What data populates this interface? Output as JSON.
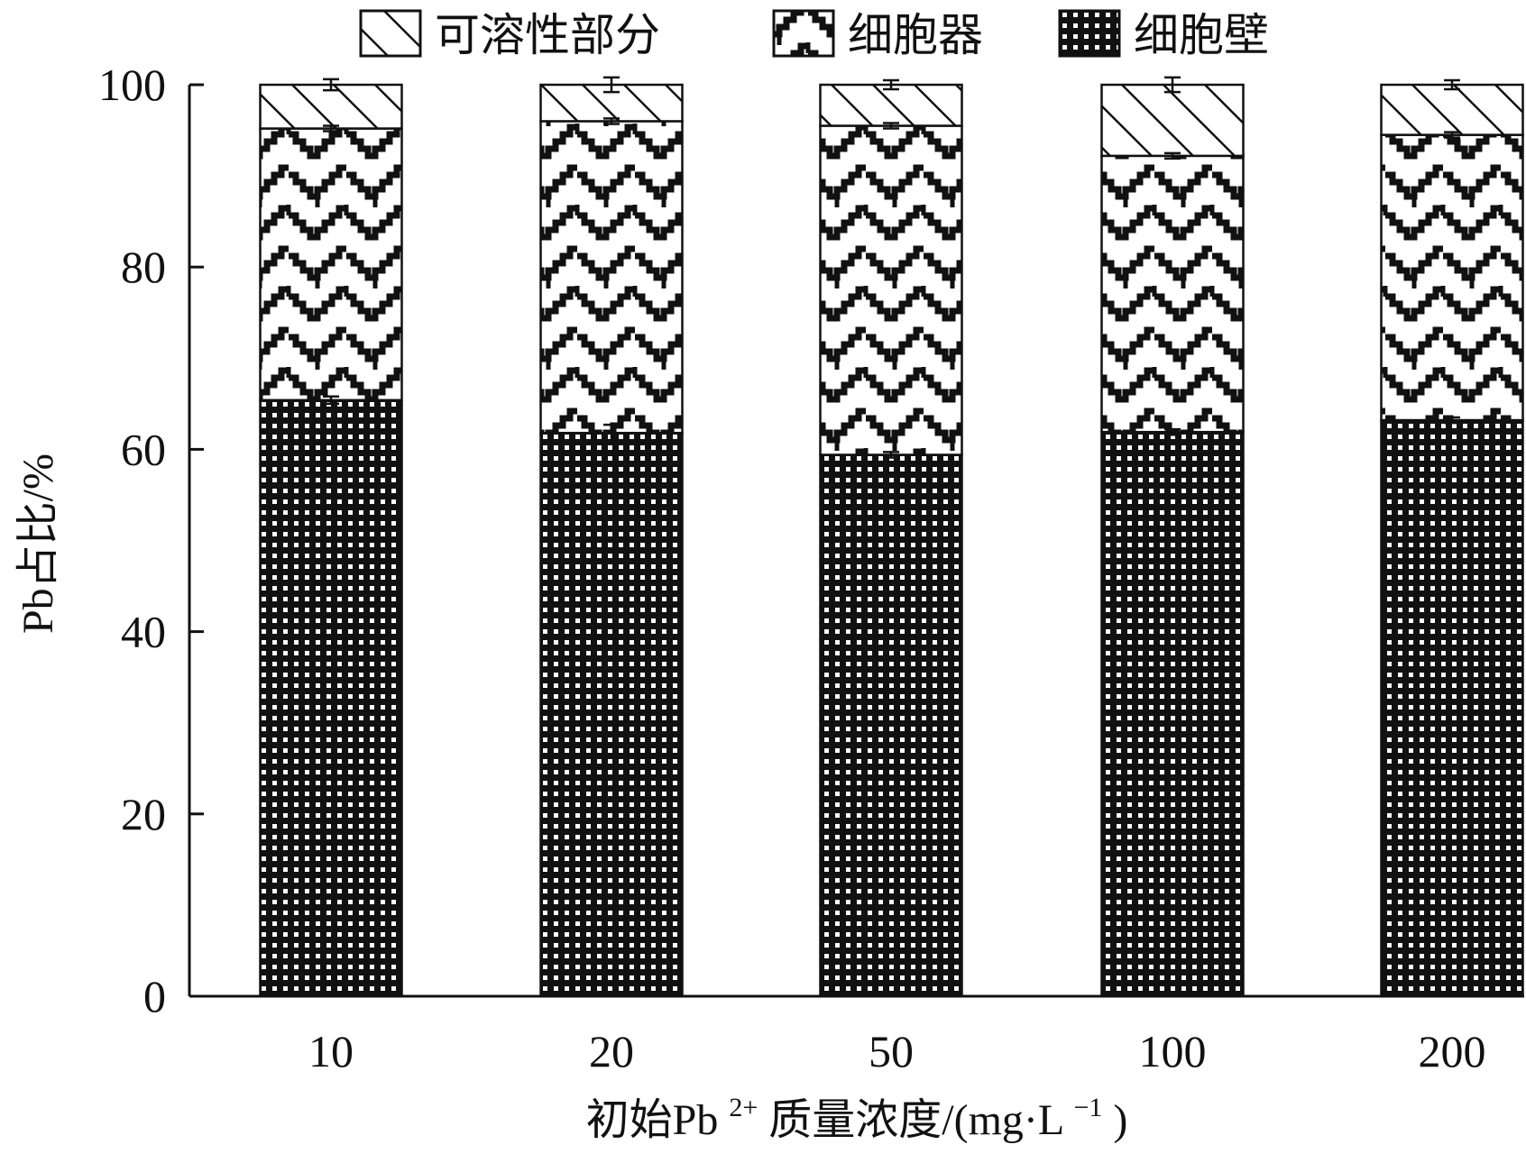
{
  "chart_data": {
    "type": "bar",
    "stacked": true,
    "categories": [
      "10",
      "20",
      "50",
      "100",
      "200"
    ],
    "series": [
      {
        "name": "细胞壁",
        "values": [
          65.4,
          61.8,
          59.4,
          61.9,
          63.2
        ],
        "errors": [
          0.4,
          0.9,
          0.3,
          0.3,
          0.3
        ]
      },
      {
        "name": "细胞器",
        "values": [
          29.8,
          34.2,
          36.1,
          30.3,
          31.3
        ],
        "errors": [
          0.3,
          0.3,
          0.3,
          0.3,
          0.3
        ]
      },
      {
        "name": "可溶性部分",
        "values": [
          4.8,
          4.0,
          4.5,
          7.8,
          5.5
        ],
        "errors": [
          0.6,
          0.8,
          0.5,
          0.8,
          0.5
        ]
      }
    ],
    "legend_order": [
      "可溶性部分",
      "细胞器",
      "细胞壁"
    ],
    "xlabel_parts": [
      "初始Pb",
      "2+",
      "质量浓度/(mg·L",
      "−1",
      ")"
    ],
    "ylabel": "Pb占比/%",
    "ylim": [
      0,
      100
    ],
    "yticks": [
      0,
      20,
      40,
      60,
      80,
      100
    ],
    "legend_position": "top",
    "grid": false,
    "colors": {
      "ink": "#111111",
      "fill": "#ffffff"
    }
  }
}
